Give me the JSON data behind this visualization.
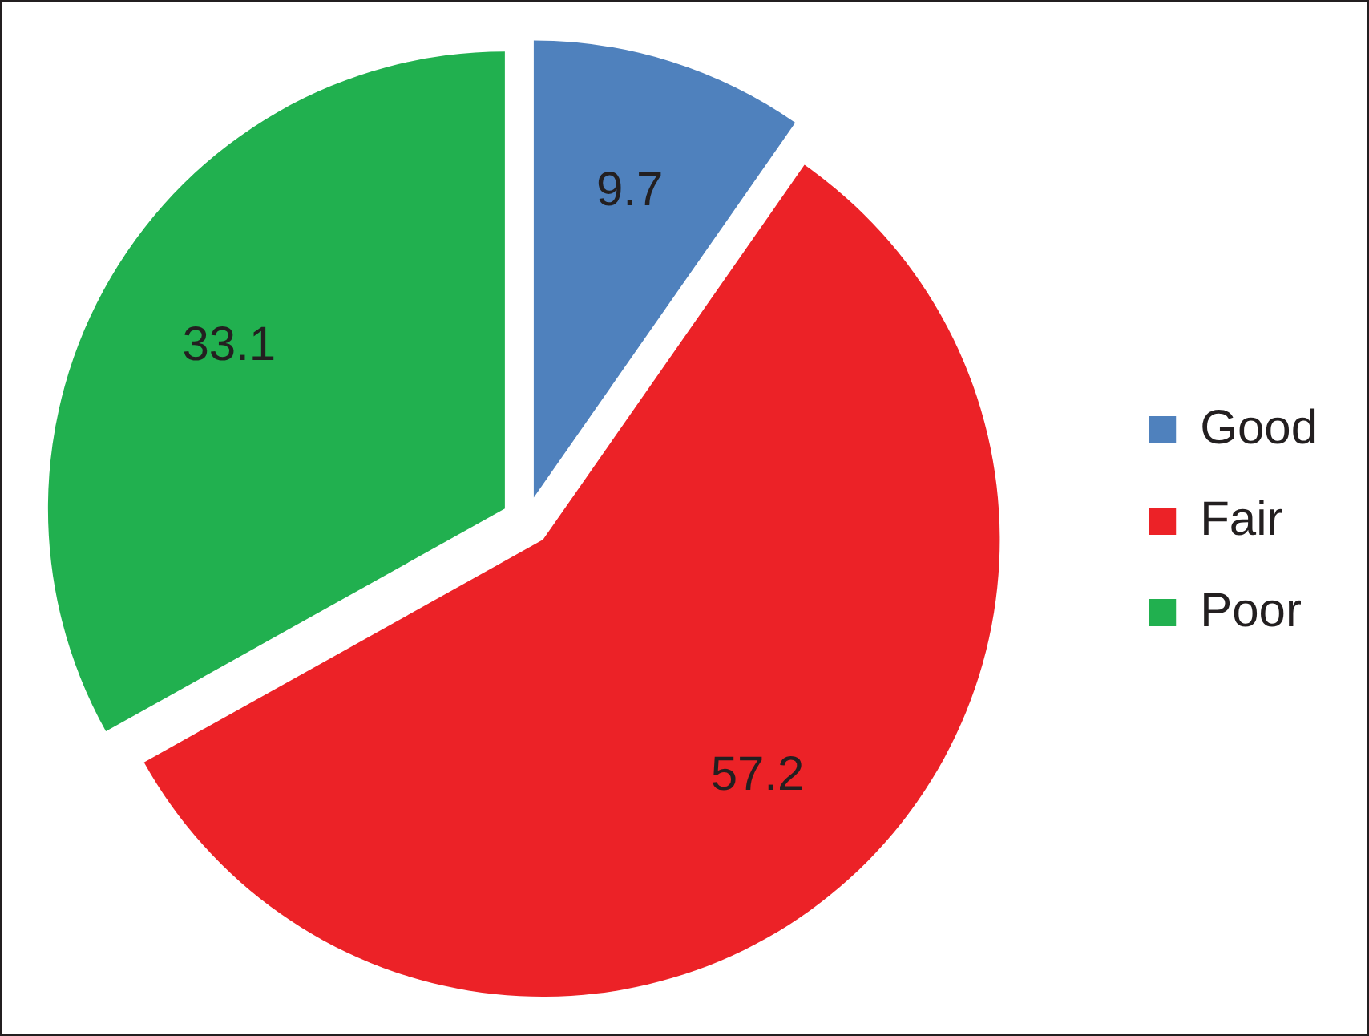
{
  "chart_data": {
    "type": "pie",
    "categories": [
      "Good",
      "Fair",
      "Poor"
    ],
    "values": [
      9.7,
      57.2,
      33.1
    ],
    "colors": [
      "#4f81bd",
      "#ec2227",
      "#21b04f"
    ],
    "data_labels": true,
    "legend": "right"
  }
}
